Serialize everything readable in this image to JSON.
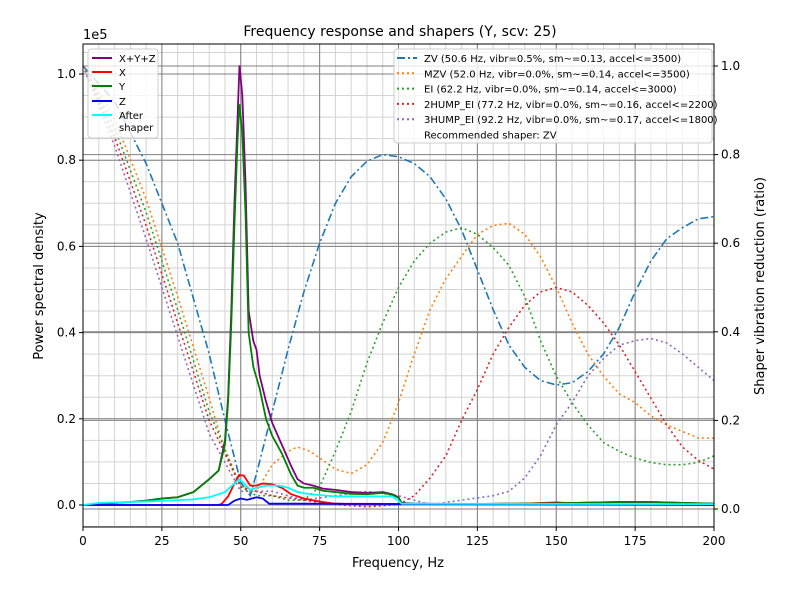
{
  "chart_data": {
    "type": "line",
    "title": "Frequency response and shapers (Y, scv: 25)",
    "xlabel": "Frequency, Hz",
    "ylabel": "Power spectral density",
    "ylabel_right": "Shaper vibration reduction (ratio)",
    "y_offset_label": "1e5",
    "xlim": [
      0,
      200
    ],
    "ylim": [
      -0.05,
      1.07
    ],
    "ylim_right": [
      -0.04,
      1.05
    ],
    "xticks": [
      "0",
      "25",
      "50",
      "75",
      "100",
      "125",
      "150",
      "175",
      "200"
    ],
    "xtick_values": [
      0,
      25,
      50,
      75,
      100,
      125,
      150,
      175,
      200
    ],
    "yticks": [
      "0.0",
      "0.2",
      "0.4",
      "0.6",
      "0.8",
      "1.0"
    ],
    "ytick_values": [
      0,
      0.2,
      0.4,
      0.6,
      0.8,
      1.0
    ],
    "yticks_right": [
      "0.0",
      "0.2",
      "0.4",
      "0.6",
      "0.8",
      "1.0"
    ],
    "grid": true,
    "psd_series": [
      {
        "name": "X+Y+Z",
        "color": "#800080",
        "x": [
          0,
          5,
          10,
          15,
          20,
          25,
          30,
          35,
          40,
          43,
          45,
          46,
          47,
          48,
          49,
          49.6,
          50.5,
          51.5,
          52.5,
          54,
          55,
          56,
          58,
          60,
          63,
          66,
          68,
          70,
          73,
          76,
          80,
          85,
          90,
          95,
          98,
          100,
          101,
          105,
          120,
          150,
          170,
          180,
          190,
          200
        ],
        "y": [
          0,
          0.001,
          0.005,
          0.007,
          0.01,
          0.015,
          0.018,
          0.03,
          0.06,
          0.08,
          0.15,
          0.25,
          0.45,
          0.7,
          0.9,
          1.02,
          0.95,
          0.75,
          0.45,
          0.38,
          0.36,
          0.3,
          0.24,
          0.19,
          0.14,
          0.09,
          0.06,
          0.05,
          0.045,
          0.038,
          0.035,
          0.03,
          0.028,
          0.03,
          0.025,
          0.018,
          0.005,
          0.003,
          0.002,
          0.004,
          0.007,
          0.007,
          0.005,
          0.003
        ]
      },
      {
        "name": "X",
        "color": "#ff0000",
        "x": [
          0,
          43,
          44,
          46,
          48,
          49.5,
          51,
          53,
          55,
          57,
          60,
          63,
          66,
          70,
          75,
          80,
          90,
          140,
          150,
          160,
          200
        ],
        "y": [
          0,
          0,
          0.003,
          0.02,
          0.05,
          0.07,
          0.068,
          0.045,
          0.045,
          0.05,
          0.048,
          0.04,
          0.025,
          0.015,
          0.008,
          0.003,
          0.001,
          0.003,
          0.006,
          0.002,
          0
        ]
      },
      {
        "name": "Y",
        "color": "#008000",
        "x": [
          0,
          5,
          10,
          15,
          20,
          25,
          30,
          35,
          40,
          43,
          45,
          46,
          47,
          48,
          49,
          49.6,
          50.5,
          51.5,
          52.5,
          54,
          56,
          58,
          60,
          63,
          66,
          68,
          70,
          73,
          76,
          80,
          85,
          90,
          95,
          98,
          100,
          101,
          105,
          120,
          150,
          170,
          180,
          190,
          200
        ],
        "y": [
          0,
          0.001,
          0.005,
          0.007,
          0.01,
          0.015,
          0.018,
          0.03,
          0.06,
          0.08,
          0.14,
          0.24,
          0.42,
          0.65,
          0.85,
          0.93,
          0.86,
          0.68,
          0.4,
          0.32,
          0.27,
          0.2,
          0.16,
          0.12,
          0.07,
          0.045,
          0.04,
          0.04,
          0.033,
          0.03,
          0.026,
          0.025,
          0.028,
          0.024,
          0.017,
          0.004,
          0.003,
          0.002,
          0.004,
          0.007,
          0.007,
          0.005,
          0.003
        ]
      },
      {
        "name": "Z",
        "color": "#0000ff",
        "x": [
          0,
          46,
          48,
          50,
          52,
          55,
          57,
          59,
          70,
          200
        ],
        "y": [
          0,
          0,
          0.01,
          0.015,
          0.012,
          0.018,
          0.015,
          0.003,
          0.003,
          0
        ]
      },
      {
        "name": "After\nshaper",
        "color": "#00ffff",
        "x": [
          0,
          5,
          20,
          35,
          40,
          45,
          48,
          49.5,
          51,
          53,
          55,
          58,
          62,
          65,
          68,
          72,
          80,
          90,
          98,
          100,
          101,
          200
        ],
        "y": [
          0,
          0.005,
          0.008,
          0.013,
          0.018,
          0.03,
          0.05,
          0.06,
          0.05,
          0.035,
          0.04,
          0.045,
          0.045,
          0.04,
          0.03,
          0.025,
          0.02,
          0.02,
          0.02,
          0.01,
          0.003,
          0.002
        ]
      }
    ],
    "shaper_series": [
      {
        "name": "ZV (50.6 Hz, vibr=0.5%, sm~=0.13, accel<=3500)",
        "color": "#1f77b4",
        "dash": "dashdot",
        "x": [
          0,
          10,
          20,
          30,
          40,
          45,
          50,
          53,
          55,
          60,
          65,
          70,
          75,
          80,
          85,
          90,
          95,
          100,
          105,
          110,
          115,
          120,
          125,
          130,
          135,
          140,
          145,
          150,
          155,
          160,
          165,
          170,
          175,
          180,
          185,
          190,
          195,
          200
        ],
        "y": [
          1.0,
          0.92,
          0.78,
          0.6,
          0.35,
          0.2,
          0.06,
          0.03,
          0.08,
          0.22,
          0.36,
          0.49,
          0.6,
          0.69,
          0.75,
          0.785,
          0.8,
          0.795,
          0.78,
          0.75,
          0.7,
          0.63,
          0.54,
          0.45,
          0.37,
          0.32,
          0.29,
          0.28,
          0.285,
          0.31,
          0.35,
          0.41,
          0.49,
          0.56,
          0.61,
          0.635,
          0.655,
          0.66
        ]
      },
      {
        "name": "MZV (52.0 Hz, vibr=0.0%, sm~=0.14, accel<=3500)",
        "color": "#ff7f0e",
        "dash": "dotted",
        "x": [
          0,
          10,
          20,
          30,
          40,
          45,
          50,
          55,
          60,
          65,
          68,
          72,
          80,
          85,
          90,
          95,
          100,
          105,
          110,
          115,
          120,
          125,
          130,
          135,
          140,
          145,
          150,
          155,
          160,
          165,
          170,
          175,
          180,
          185,
          190,
          195,
          200
        ],
        "y": [
          1.0,
          0.88,
          0.7,
          0.48,
          0.25,
          0.13,
          0.05,
          0.04,
          0.1,
          0.13,
          0.14,
          0.13,
          0.09,
          0.08,
          0.1,
          0.15,
          0.24,
          0.35,
          0.45,
          0.52,
          0.57,
          0.62,
          0.64,
          0.645,
          0.62,
          0.57,
          0.5,
          0.42,
          0.35,
          0.3,
          0.26,
          0.24,
          0.21,
          0.19,
          0.175,
          0.16,
          0.16
        ]
      },
      {
        "name": "EI (62.2 Hz, vibr=0.0%, sm~=0.14, accel<=3000)",
        "color": "#2ca02c",
        "dash": "dotted",
        "x": [
          0,
          10,
          20,
          30,
          40,
          50,
          55,
          60,
          65,
          70,
          75,
          80,
          85,
          90,
          95,
          100,
          105,
          110,
          115,
          120,
          125,
          130,
          135,
          140,
          145,
          150,
          155,
          160,
          165,
          170,
          175,
          180,
          185,
          190,
          195,
          200
        ],
        "y": [
          1.0,
          0.86,
          0.67,
          0.45,
          0.22,
          0.05,
          0.03,
          0.03,
          0.02,
          0.02,
          0.05,
          0.13,
          0.22,
          0.33,
          0.42,
          0.5,
          0.56,
          0.6,
          0.625,
          0.635,
          0.62,
          0.59,
          0.55,
          0.48,
          0.38,
          0.3,
          0.24,
          0.19,
          0.15,
          0.13,
          0.115,
          0.105,
          0.1,
          0.1,
          0.105,
          0.12
        ]
      },
      {
        "name": "2HUMP_EI (77.2 Hz, vibr=0.0%, sm~=0.16, accel<=2200)",
        "color": "#d62728",
        "dash": "dotted",
        "x": [
          0,
          10,
          20,
          30,
          40,
          50,
          60,
          70,
          80,
          90,
          100,
          105,
          110,
          115,
          120,
          125,
          130,
          135,
          140,
          145,
          150,
          155,
          160,
          165,
          170,
          175,
          180,
          185,
          190,
          195,
          200
        ],
        "y": [
          1.0,
          0.84,
          0.64,
          0.42,
          0.2,
          0.05,
          0.03,
          0.02,
          0.01,
          0.005,
          0.01,
          0.03,
          0.07,
          0.12,
          0.2,
          0.27,
          0.35,
          0.41,
          0.46,
          0.49,
          0.5,
          0.49,
          0.46,
          0.42,
          0.37,
          0.31,
          0.25,
          0.19,
          0.14,
          0.11,
          0.09
        ]
      },
      {
        "name": "3HUMP_EI (92.2 Hz, vibr=0.0%, sm~=0.17, accel<=1800)",
        "color": "#9467bd",
        "dash": "dotted",
        "x": [
          0,
          10,
          20,
          30,
          40,
          50,
          60,
          70,
          80,
          90,
          100,
          110,
          120,
          130,
          135,
          140,
          145,
          150,
          155,
          160,
          165,
          170,
          175,
          180,
          185,
          190,
          195,
          200
        ],
        "y": [
          1.0,
          0.82,
          0.61,
          0.39,
          0.17,
          0.04,
          0.04,
          0.02,
          0.03,
          0.04,
          0.03,
          0.01,
          0.02,
          0.03,
          0.04,
          0.07,
          0.12,
          0.19,
          0.24,
          0.3,
          0.34,
          0.37,
          0.38,
          0.385,
          0.375,
          0.35,
          0.32,
          0.29
        ]
      }
    ],
    "recommended": "Recommended shaper: ZV",
    "legend_left_placement": "top-left",
    "legend_right_placement": "top-right"
  }
}
